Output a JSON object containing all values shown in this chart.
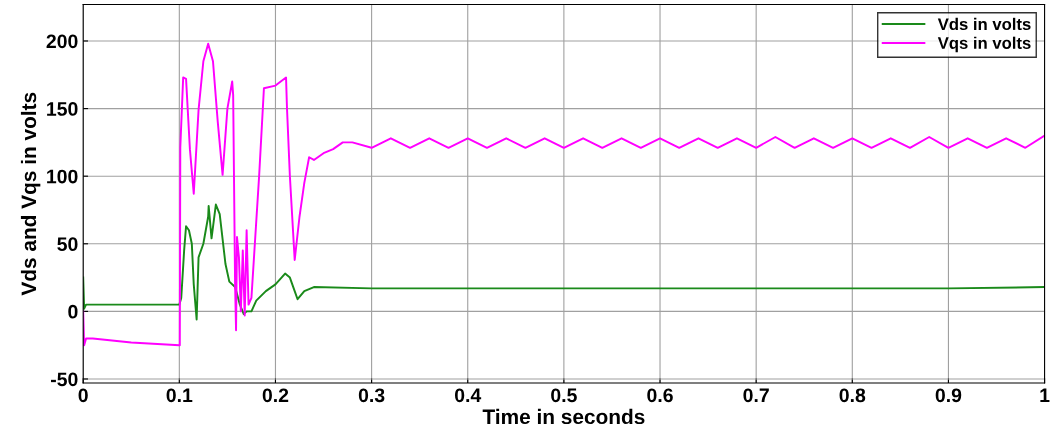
{
  "chart_data": {
    "type": "line",
    "xlabel": "Time in seconds",
    "ylabel": "Vds and Vqs in volts",
    "xlim": [
      0,
      1
    ],
    "xticks": [
      0,
      0.1,
      0.2,
      0.3,
      0.4,
      0.5,
      0.6,
      0.7,
      0.8,
      0.9,
      1
    ],
    "ylim": [
      -53,
      227
    ],
    "yticks": [
      -50,
      0,
      50,
      100,
      150,
      200
    ],
    "grid": true,
    "legend": "top right",
    "series": [
      {
        "name": "Vds in volts",
        "color": "#1a8a1a",
        "x": [
          0,
          0.001,
          0.003,
          0.05,
          0.1,
          0.102,
          0.105,
          0.107,
          0.11,
          0.113,
          0.115,
          0.118,
          0.12,
          0.125,
          0.13,
          0.1305,
          0.1335,
          0.138,
          0.142,
          0.148,
          0.152,
          0.158,
          0.163,
          0.167,
          0.17,
          0.175,
          0.18,
          0.19,
          0.2,
          0.21,
          0.215,
          0.22,
          0.223,
          0.23,
          0.24,
          0.3,
          0.4,
          0.5,
          0.6,
          0.7,
          0.8,
          0.9,
          1.0
        ],
        "values": [
          25,
          2,
          5,
          5,
          5,
          10,
          45,
          63,
          60,
          50,
          20,
          -6,
          40,
          50,
          70,
          78,
          54,
          79,
          72,
          35,
          22,
          18,
          5,
          -2,
          0,
          0,
          8,
          15,
          20,
          28,
          25,
          15,
          9,
          15,
          18,
          17,
          17,
          17,
          17,
          17,
          17,
          17,
          18
        ]
      },
      {
        "name": "Vqs in volts",
        "color": "#ff00ff",
        "x": [
          0,
          0.001,
          0.003,
          0.01,
          0.05,
          0.1,
          0.1005,
          0.101,
          0.104,
          0.107,
          0.111,
          0.115,
          0.12,
          0.125,
          0.13,
          0.135,
          0.14,
          0.145,
          0.15,
          0.155,
          0.156,
          0.158,
          0.159,
          0.16,
          0.162,
          0.164,
          0.166,
          0.168,
          0.17,
          0.172,
          0.175,
          0.183,
          0.188,
          0.2,
          0.211,
          0.212,
          0.215,
          0.22,
          0.225,
          0.23,
          0.235,
          0.24,
          0.25,
          0.26,
          0.27,
          0.28,
          0.3,
          0.32,
          0.34,
          0.36,
          0.38,
          0.4,
          0.42,
          0.44,
          0.46,
          0.48,
          0.5,
          0.52,
          0.54,
          0.56,
          0.58,
          0.6,
          0.62,
          0.64,
          0.66,
          0.68,
          0.7,
          0.72,
          0.74,
          0.76,
          0.78,
          0.8,
          0.82,
          0.84,
          0.86,
          0.88,
          0.9,
          0.92,
          0.94,
          0.96,
          0.98,
          1.0
        ],
        "values": [
          0,
          -25,
          -20,
          -20,
          -23,
          -25,
          -25,
          121,
          173,
          172,
          120,
          87,
          149,
          185,
          198,
          185,
          140,
          101,
          150,
          170,
          160,
          20,
          -14,
          55,
          40,
          0,
          45,
          -3,
          60,
          5,
          10,
          100,
          165,
          167,
          173,
          150,
          100,
          38,
          70,
          95,
          114,
          112,
          117,
          120,
          125,
          125,
          121,
          128,
          121,
          128,
          121,
          128,
          121,
          128,
          121,
          128,
          121,
          128,
          121,
          128,
          121,
          128,
          121,
          128,
          121,
          128,
          121,
          129,
          121,
          128,
          121,
          128,
          121,
          128,
          121,
          129,
          121,
          128,
          121,
          128,
          121,
          130
        ]
      }
    ]
  }
}
